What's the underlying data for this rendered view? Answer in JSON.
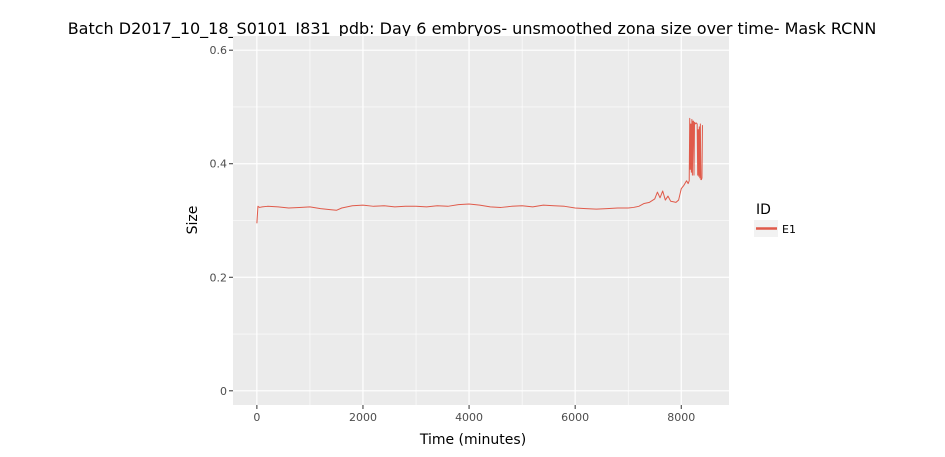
{
  "chart_data": {
    "type": "line",
    "title": "Batch D2017_10_18_S0101_I831_pdb: Day 6 embryos- unsmoothed zona size over time- Mask RCNN",
    "xlabel": "Time (minutes)",
    "ylabel": "Size",
    "xlim": [
      -450,
      8900
    ],
    "ylim": [
      -0.025,
      0.625
    ],
    "xticks": [
      0,
      2000,
      4000,
      6000,
      8000
    ],
    "xtick_labels": [
      "0",
      "2000",
      "4000",
      "6000",
      "8000"
    ],
    "yticks": [
      0,
      0.2,
      0.4,
      0.6
    ],
    "ytick_labels": [
      "0",
      "0.2",
      "0.4",
      "0.6"
    ],
    "grid": true,
    "legend": {
      "title": "ID",
      "position": "right"
    },
    "series": [
      {
        "name": "E1",
        "color": "#e05a4a",
        "x": [
          0,
          20,
          50,
          100,
          200,
          400,
          600,
          800,
          1000,
          1200,
          1400,
          1500,
          1600,
          1800,
          2000,
          2200,
          2400,
          2600,
          2800,
          3000,
          3200,
          3400,
          3600,
          3800,
          4000,
          4200,
          4400,
          4600,
          4800,
          5000,
          5200,
          5400,
          5600,
          5800,
          6000,
          6200,
          6400,
          6600,
          6800,
          7000,
          7100,
          7200,
          7300,
          7400,
          7500,
          7550,
          7600,
          7650,
          7700,
          7750,
          7800,
          7850,
          7900,
          7950,
          8000,
          8050,
          8100,
          8130,
          8150,
          8160,
          8170,
          8180,
          8190,
          8200,
          8210,
          8220,
          8230,
          8240,
          8250,
          8260,
          8280,
          8300,
          8310,
          8320,
          8330,
          8340,
          8350,
          8360,
          8370,
          8380,
          8390,
          8400
        ],
        "y": [
          0.295,
          0.325,
          0.323,
          0.324,
          0.325,
          0.324,
          0.322,
          0.323,
          0.324,
          0.321,
          0.319,
          0.318,
          0.322,
          0.326,
          0.327,
          0.325,
          0.326,
          0.324,
          0.325,
          0.325,
          0.324,
          0.326,
          0.325,
          0.328,
          0.329,
          0.327,
          0.324,
          0.323,
          0.325,
          0.326,
          0.324,
          0.327,
          0.326,
          0.325,
          0.322,
          0.321,
          0.32,
          0.321,
          0.322,
          0.322,
          0.323,
          0.325,
          0.33,
          0.332,
          0.338,
          0.35,
          0.34,
          0.352,
          0.336,
          0.343,
          0.334,
          0.333,
          0.332,
          0.336,
          0.356,
          0.362,
          0.37,
          0.365,
          0.37,
          0.48,
          0.39,
          0.47,
          0.385,
          0.478,
          0.38,
          0.475,
          0.475,
          0.38,
          0.473,
          0.47,
          0.472,
          0.47,
          0.38,
          0.46,
          0.378,
          0.465,
          0.375,
          0.47,
          0.372,
          0.372,
          0.375,
          0.468
        ]
      }
    ]
  }
}
